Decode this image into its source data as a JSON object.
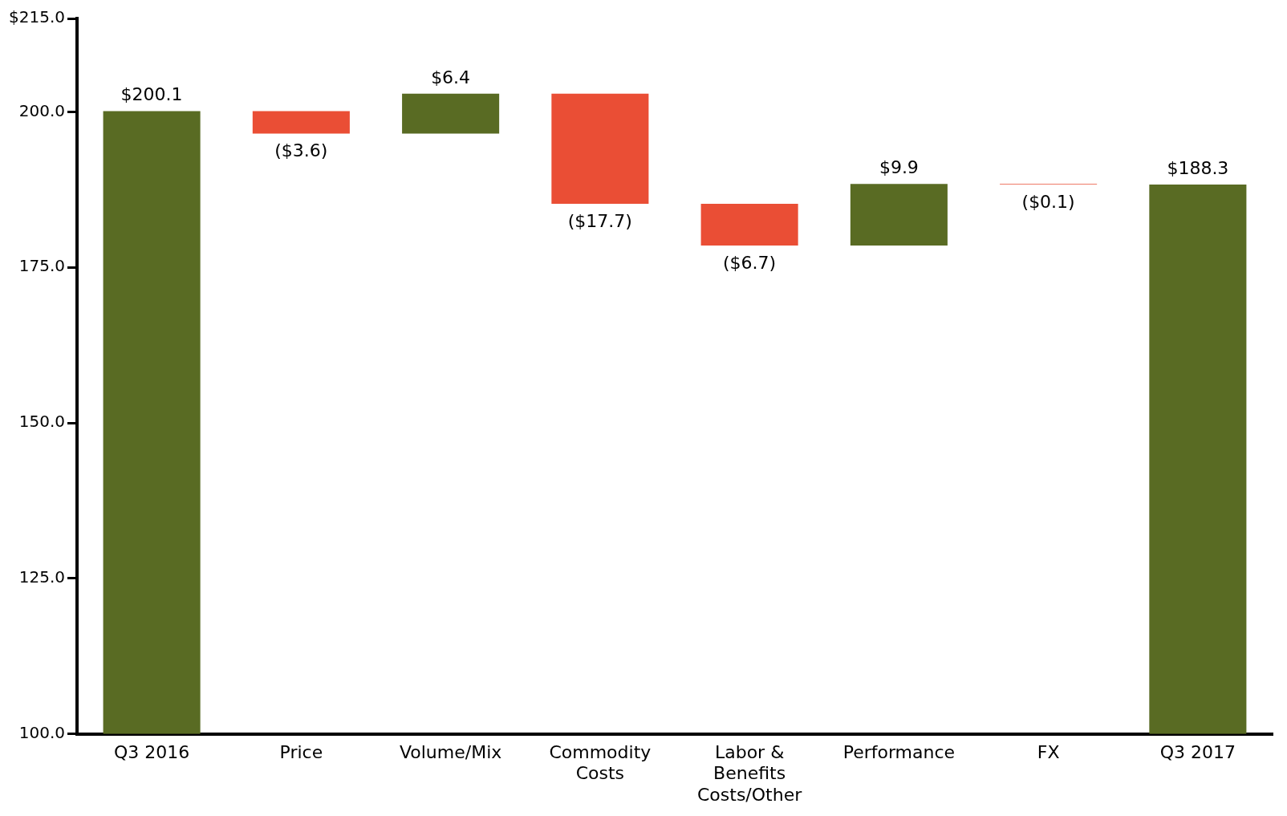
{
  "chart_data": {
    "type": "bar",
    "categories": [
      "Q3 2016",
      "Price",
      "Volume/Mix",
      "Commodity Costs",
      "Labor & Benefits Costs/Other",
      "Performance",
      "FX",
      "Q3 2017"
    ],
    "base": [
      100,
      200.1,
      196.5,
      202.9,
      185.2,
      178.5,
      188.4,
      100
    ],
    "values": [
      100.1,
      -3.6,
      6.4,
      -17.7,
      -6.7,
      9.9,
      -0.1,
      88.3
    ],
    "colors": [
      "#596b23",
      "#ea4e35",
      "#596b23",
      "#ea4e35",
      "#ea4e35",
      "#596b23",
      "#ea4e35",
      "#596b23"
    ],
    "value_labels": [
      "$200.1",
      "($3.6)",
      "$6.4",
      "($17.7)",
      "($6.7)",
      "$9.9",
      "($0.1)",
      "$188.3"
    ],
    "ylim": [
      100,
      215
    ],
    "yticks": [
      {
        "value": 100,
        "label": "100.0"
      },
      {
        "value": 125,
        "label": "125.0"
      },
      {
        "value": 150,
        "label": "150.0"
      },
      {
        "value": 175,
        "label": "175.0"
      },
      {
        "value": 200,
        "label": "200.0"
      },
      {
        "value": 215,
        "label": "$215.0"
      }
    ],
    "grid": false,
    "legend": false
  }
}
